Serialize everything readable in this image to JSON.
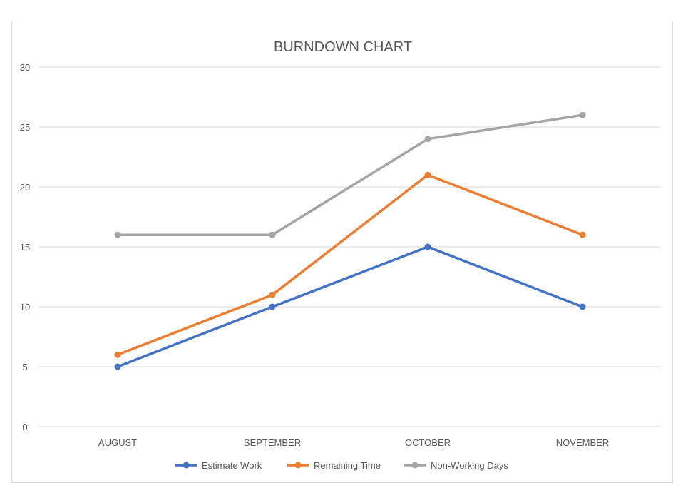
{
  "chart_data": {
    "type": "line",
    "title": "BURNDOWN CHART",
    "xlabel": "",
    "ylabel": "",
    "categories": [
      "AUGUST",
      "SEPTEMBER",
      "OCTOBER",
      "NOVEMBER"
    ],
    "ylim": [
      0,
      30
    ],
    "yticks": [
      0,
      5,
      10,
      15,
      20,
      25,
      30
    ],
    "grid": true,
    "legend_position": "bottom",
    "series": [
      {
        "name": "Estimate Work",
        "color": "#4472c4",
        "values": [
          5,
          10,
          15,
          10
        ]
      },
      {
        "name": "Remaining Time",
        "color": "#ed7d31",
        "values": [
          6,
          11,
          21,
          16
        ]
      },
      {
        "name": "Non-Working Days",
        "color": "#a5a5a5",
        "values": [
          16,
          16,
          24,
          26
        ]
      }
    ]
  }
}
